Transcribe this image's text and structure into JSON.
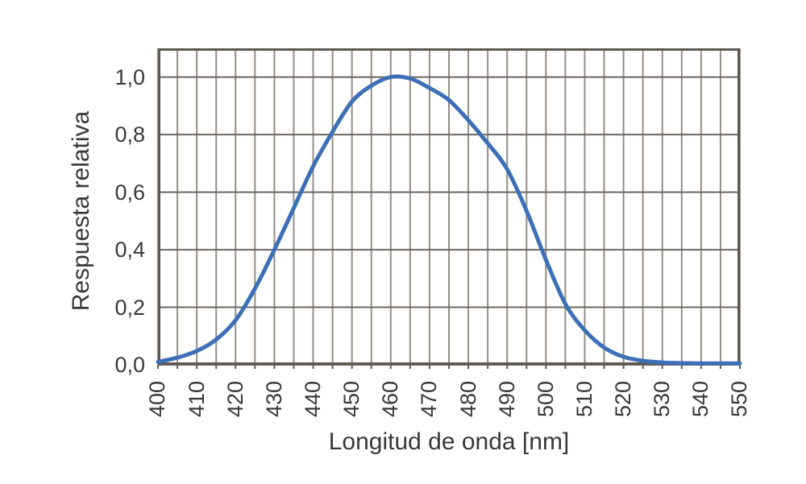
{
  "chart_data": {
    "type": "line",
    "title": "",
    "xlabel": "Longitud de onda [nm]",
    "ylabel": "Respuesta relativa",
    "xlim": [
      400,
      550
    ],
    "ylim": [
      0,
      1.1
    ],
    "x_minor_step": 5,
    "x_major_step": 10,
    "y_step": 0.2,
    "grid": true,
    "legend": "none",
    "x_tick_labels": [
      "400",
      "410",
      "420",
      "430",
      "440",
      "450",
      "460",
      "470",
      "480",
      "490",
      "500",
      "510",
      "520",
      "530",
      "540",
      "550"
    ],
    "y_ticks": [
      {
        "value": 0.0,
        "label": "0,0"
      },
      {
        "value": 0.2,
        "label": "0,2"
      },
      {
        "value": 0.4,
        "label": "0,4"
      },
      {
        "value": 0.6,
        "label": "0,6"
      },
      {
        "value": 0.8,
        "label": "0,8"
      },
      {
        "value": 1.0,
        "label": "1,0"
      }
    ],
    "series": [
      {
        "name": "respuesta-relativa",
        "color": "#3c70b6",
        "x": [
          400,
          405,
          410,
          415,
          420,
          425,
          430,
          435,
          440,
          445,
          450,
          455,
          460,
          465,
          470,
          475,
          480,
          485,
          490,
          495,
          500,
          505,
          510,
          515,
          520,
          525,
          530,
          535,
          540,
          545,
          550
        ],
        "y": [
          0.01,
          0.025,
          0.048,
          0.088,
          0.155,
          0.265,
          0.4,
          0.545,
          0.69,
          0.81,
          0.915,
          0.97,
          1.0,
          0.995,
          0.962,
          0.92,
          0.85,
          0.77,
          0.68,
          0.535,
          0.365,
          0.212,
          0.12,
          0.06,
          0.028,
          0.014,
          0.008,
          0.006,
          0.005,
          0.005,
          0.005
        ]
      }
    ],
    "colors": {
      "curve": "#3c70b6",
      "grid_vertical": "#958d87",
      "grid_horizontal": "#6e6762",
      "frame": "#5f5953",
      "text": "#383838",
      "background": "#ffffff"
    }
  }
}
